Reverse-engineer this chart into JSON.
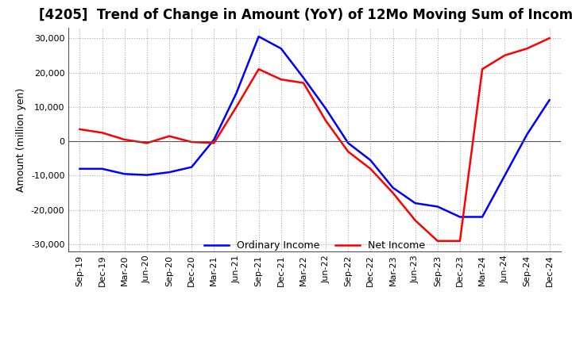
{
  "title": "[4205]  Trend of Change in Amount (YoY) of 12Mo Moving Sum of Incomes",
  "ylabel": "Amount (million yen)",
  "ylim": [
    -32000,
    33000
  ],
  "yticks": [
    -30000,
    -20000,
    -10000,
    0,
    10000,
    20000,
    30000
  ],
  "x_labels": [
    "Sep-19",
    "Dec-19",
    "Mar-20",
    "Jun-20",
    "Sep-20",
    "Dec-20",
    "Mar-21",
    "Jun-21",
    "Sep-21",
    "Dec-21",
    "Mar-22",
    "Jun-22",
    "Sep-22",
    "Dec-22",
    "Mar-23",
    "Jun-23",
    "Sep-23",
    "Dec-23",
    "Mar-24",
    "Jun-24",
    "Sep-24",
    "Dec-24"
  ],
  "ordinary_income": [
    -8000,
    -8000,
    -9500,
    -9800,
    -9000,
    -7500,
    500,
    14000,
    30500,
    27000,
    18500,
    9500,
    -500,
    -5500,
    -13500,
    -18000,
    -19000,
    -22000,
    -22000,
    -10000,
    2000,
    12000
  ],
  "net_income": [
    3500,
    2500,
    500,
    -500,
    1500,
    -200,
    -500,
    10000,
    21000,
    18000,
    17000,
    6000,
    -3000,
    -8000,
    -15000,
    -23000,
    -29000,
    -29000,
    21000,
    25000,
    27000,
    30000
  ],
  "ordinary_color": "#0000ff",
  "net_color": "#ff0000",
  "line_width": 1.8,
  "background_color": "#ffffff",
  "grid_color": "#aaaaaa",
  "title_fontsize": 12,
  "legend_labels": [
    "Ordinary Income",
    "Net Income"
  ]
}
